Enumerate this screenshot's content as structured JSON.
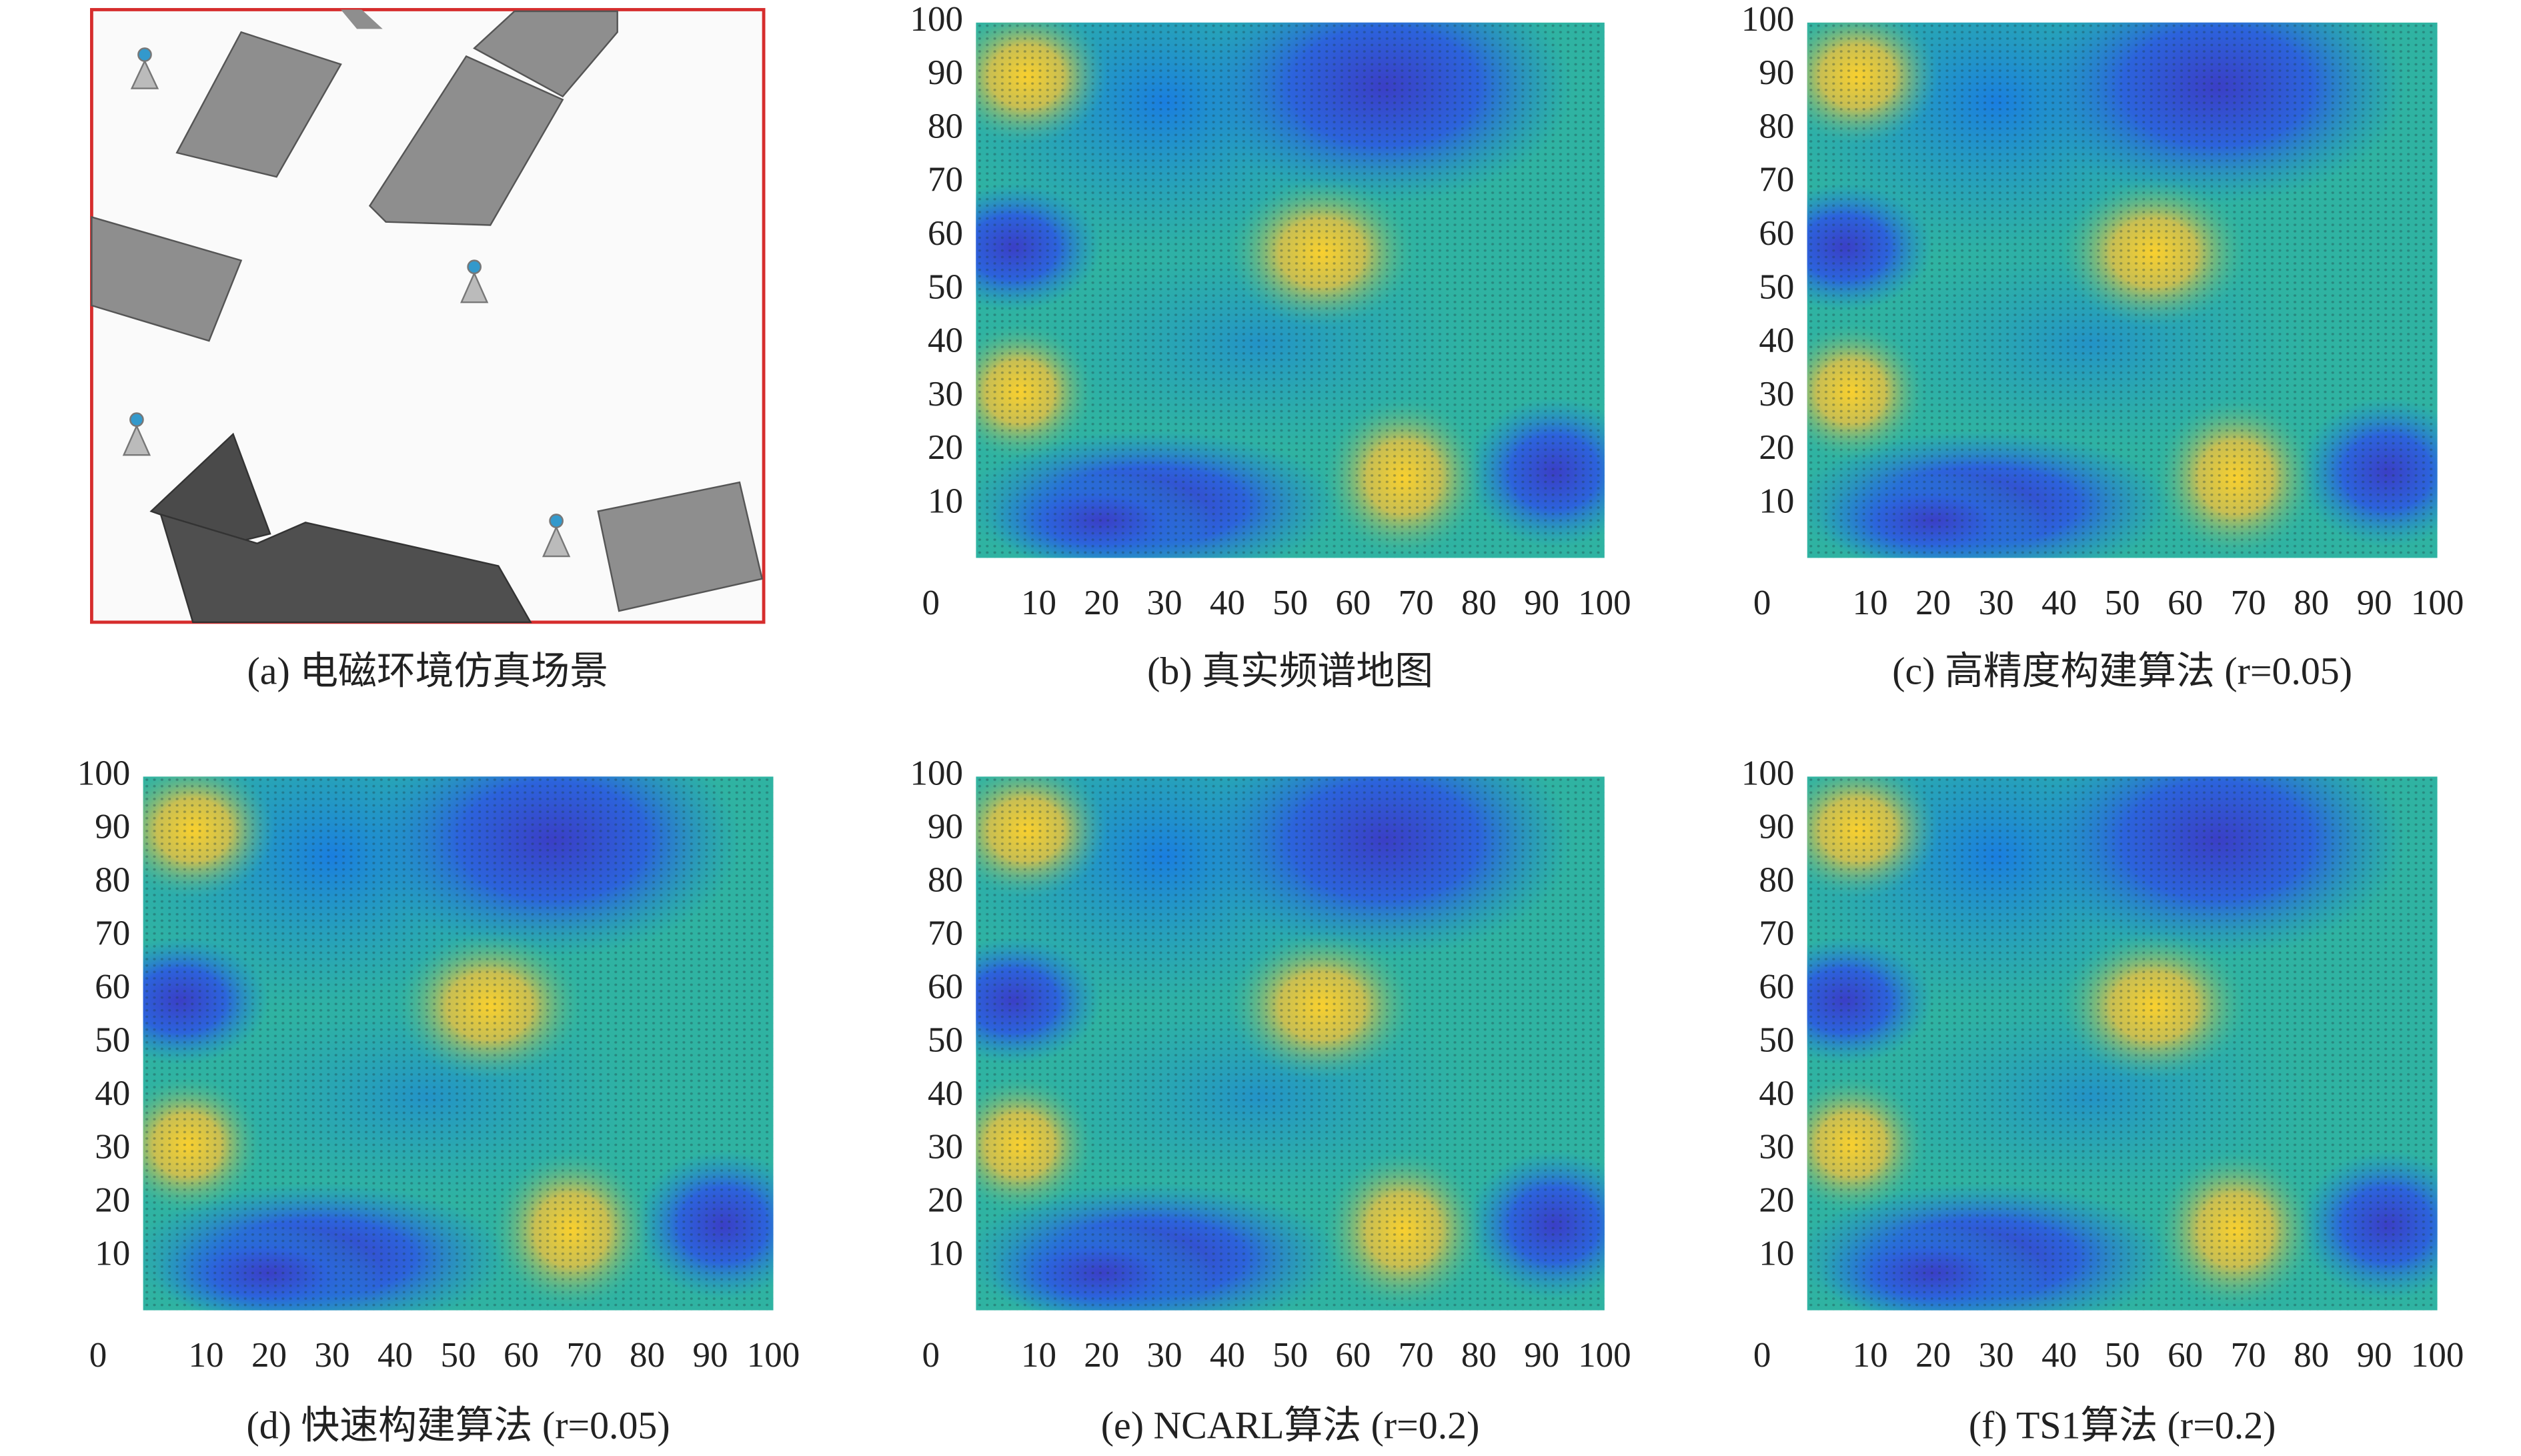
{
  "scene": {
    "caption": "(a) 电磁环境仿真场景"
  },
  "chart_data": [
    {
      "type": "heatmap",
      "caption": "(b) 真实频谱地图",
      "xlim": [
        0,
        100
      ],
      "ylim": [
        0,
        100
      ],
      "xticks": [
        0,
        10,
        20,
        30,
        40,
        50,
        60,
        70,
        80,
        90,
        100
      ],
      "yticks": [
        10,
        20,
        30,
        40,
        50,
        60,
        70,
        80,
        90,
        100
      ]
    },
    {
      "type": "heatmap",
      "caption": "(c) 高精度构建算法 (r=0.05)",
      "xlim": [
        0,
        100
      ],
      "ylim": [
        0,
        100
      ],
      "xticks": [
        0,
        10,
        20,
        30,
        40,
        50,
        60,
        70,
        80,
        90,
        100
      ],
      "yticks": [
        10,
        20,
        30,
        40,
        50,
        60,
        70,
        80,
        90,
        100
      ]
    },
    {
      "type": "heatmap",
      "caption": "(d) 快速构建算法 (r=0.05)",
      "xlim": [
        0,
        100
      ],
      "ylim": [
        0,
        100
      ],
      "xticks": [
        0,
        10,
        20,
        30,
        40,
        50,
        60,
        70,
        80,
        90,
        100
      ],
      "yticks": [
        10,
        20,
        30,
        40,
        50,
        60,
        70,
        80,
        90,
        100
      ]
    },
    {
      "type": "heatmap",
      "caption": "(e) NCARL算法 (r=0.2)",
      "xlim": [
        0,
        100
      ],
      "ylim": [
        0,
        100
      ],
      "xticks": [
        0,
        10,
        20,
        30,
        40,
        50,
        60,
        70,
        80,
        90,
        100
      ],
      "yticks": [
        10,
        20,
        30,
        40,
        50,
        60,
        70,
        80,
        90,
        100
      ]
    },
    {
      "type": "heatmap",
      "caption": "(f) TS1算法 (r=0.2)",
      "xlim": [
        0,
        100
      ],
      "ylim": [
        0,
        100
      ],
      "xticks": [
        0,
        10,
        20,
        30,
        40,
        50,
        60,
        70,
        80,
        90,
        100
      ],
      "yticks": [
        10,
        20,
        30,
        40,
        50,
        60,
        70,
        80,
        90,
        100
      ]
    }
  ]
}
